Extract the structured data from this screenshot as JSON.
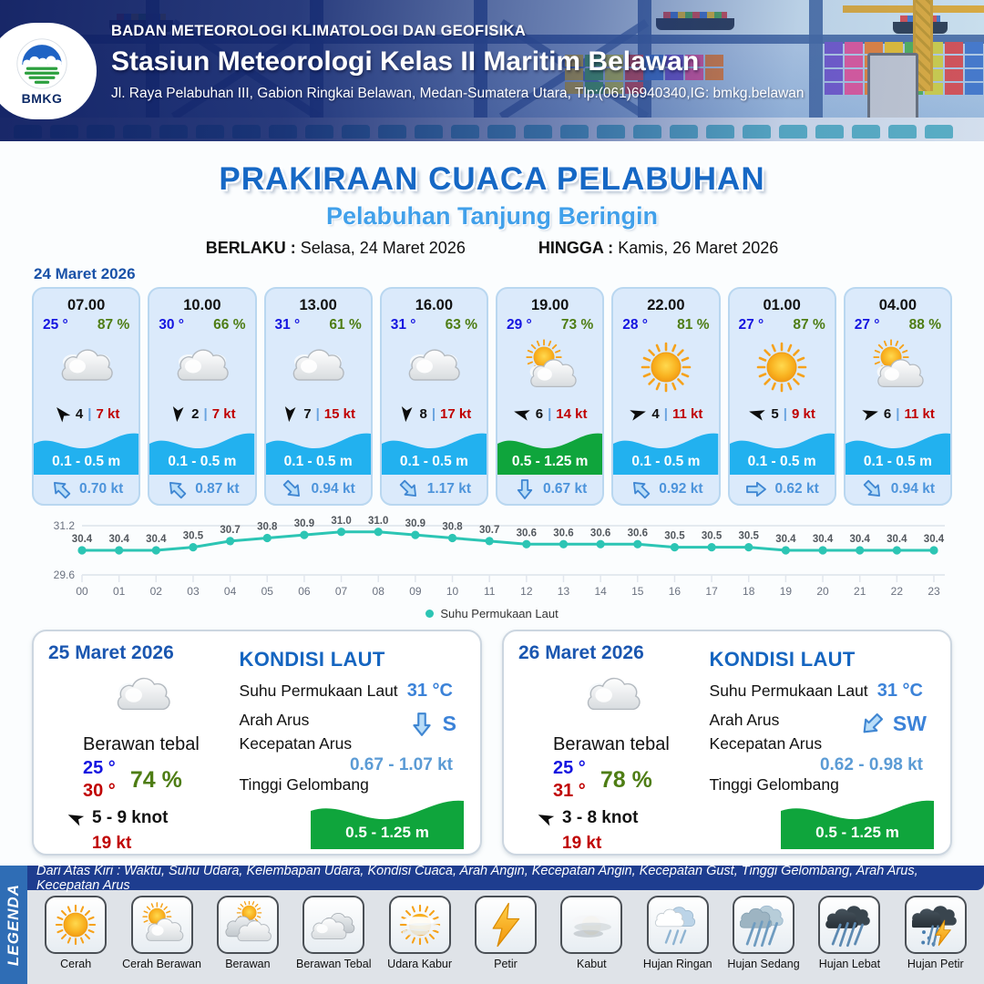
{
  "header": {
    "agency": "BADAN METEOROLOGI KLIMATOLOGI DAN GEOFISIKA",
    "station": "Stasiun Meteorologi Kelas II Maritim Belawan",
    "address": "Jl. Raya Pelabuhan III, Gabion Ringkai Belawan, Medan-Sumatera Utara, Tlp:(061)6940340,IG: bmkg.belawan",
    "logo": "BMKG"
  },
  "title": {
    "main": "PRAKIRAAN CUACA PELABUHAN",
    "sub": "Pelabuhan Tanjung Beringin"
  },
  "validity": {
    "berlaku_label": "BERLAKU :",
    "berlaku_value": "Selasa, 24 Maret 2026",
    "hingga_label": "HINGGA :",
    "hingga_value": "Kamis, 26 Maret 2026"
  },
  "day_label": "24 Maret 2026",
  "ui": {
    "gust_sep": "|"
  },
  "hourly": [
    {
      "time": "07.00",
      "temp": "25 °",
      "humidity": "87 %",
      "icon": "cloud",
      "wind_deg": 230,
      "wind": "4",
      "gust": "7 kt",
      "wave": "0.1 - 0.5 m",
      "wave_color": "#22b1ef",
      "current_deg": 225,
      "current": "0.70 kt"
    },
    {
      "time": "10.00",
      "temp": "30 °",
      "humidity": "66 %",
      "icon": "cloud",
      "wind_deg": 95,
      "wind": "2",
      "gust": "7 kt",
      "wave": "0.1 - 0.5 m",
      "wave_color": "#22b1ef",
      "current_deg": 225,
      "current": "0.87 kt"
    },
    {
      "time": "13.00",
      "temp": "31 °",
      "humidity": "61 %",
      "icon": "cloud",
      "wind_deg": 95,
      "wind": "7",
      "gust": "15 kt",
      "wave": "0.1 - 0.5 m",
      "wave_color": "#22b1ef",
      "current_deg": 45,
      "current": "0.94 kt"
    },
    {
      "time": "16.00",
      "temp": "31 °",
      "humidity": "63 %",
      "icon": "cloud",
      "wind_deg": 95,
      "wind": "8",
      "gust": "17 kt",
      "wave": "0.1 - 0.5 m",
      "wave_color": "#22b1ef",
      "current_deg": 45,
      "current": "1.17 kt"
    },
    {
      "time": "19.00",
      "temp": "29 °",
      "humidity": "73 %",
      "icon": "sun-cloud",
      "wind_deg": 195,
      "wind": "6",
      "gust": "14 kt",
      "wave": "0.5 - 1.25 m",
      "wave_color": "#0fa53c",
      "current_deg": 90,
      "current": "0.67 kt"
    },
    {
      "time": "22.00",
      "temp": "28 °",
      "humidity": "81 %",
      "icon": "sun",
      "wind_deg": 345,
      "wind": "4",
      "gust": "11 kt",
      "wave": "0.1 - 0.5 m",
      "wave_color": "#22b1ef",
      "current_deg": 225,
      "current": "0.92 kt"
    },
    {
      "time": "01.00",
      "temp": "27 °",
      "humidity": "87 %",
      "icon": "sun",
      "wind_deg": 195,
      "wind": "5",
      "gust": "9 kt",
      "wave": "0.1 - 0.5 m",
      "wave_color": "#22b1ef",
      "current_deg": 0,
      "current": "0.62 kt"
    },
    {
      "time": "04.00",
      "temp": "27 °",
      "humidity": "88 %",
      "icon": "sun-cloud",
      "wind_deg": 345,
      "wind": "6",
      "gust": "11 kt",
      "wave": "0.1 - 0.5 m",
      "wave_color": "#22b1ef",
      "current_deg": 45,
      "current": "0.94 kt"
    }
  ],
  "chart_data": {
    "type": "line",
    "x": [
      "00",
      "01",
      "02",
      "03",
      "04",
      "05",
      "06",
      "07",
      "08",
      "09",
      "10",
      "11",
      "12",
      "13",
      "14",
      "15",
      "16",
      "17",
      "18",
      "19",
      "20",
      "21",
      "22",
      "23"
    ],
    "series": [
      {
        "name": "Suhu Permukaan Laut",
        "values": [
          30.4,
          30.4,
          30.4,
          30.5,
          30.7,
          30.8,
          30.9,
          31.0,
          31.0,
          30.9,
          30.8,
          30.7,
          30.6,
          30.6,
          30.6,
          30.6,
          30.5,
          30.5,
          30.5,
          30.4,
          30.4,
          30.4,
          30.4,
          30.4
        ]
      }
    ],
    "ylim": [
      29.6,
      31.2
    ],
    "yticks": [
      "31.2",
      "29.6"
    ],
    "legend": "Suhu Permukaan Laut",
    "legend_position": "bottom",
    "line_color": "#2cc5b4",
    "grid": "top-and-bottom-only",
    "title": "",
    "xlabel": "",
    "ylabel": ""
  },
  "sea_labels": {
    "title": "KONDISI LAUT",
    "sst": "Suhu Permukaan Laut",
    "arah": "Arah Arus",
    "kecepatan": "Kecepatan Arus",
    "gelombang": "Tinggi Gelombang"
  },
  "daily": [
    {
      "date": "25 Maret 2026",
      "condition": "Berawan tebal",
      "icon": "cloud",
      "temp_min": "25 °",
      "temp_max": "30 °",
      "humidity": "74 %",
      "wind_deg": 205,
      "wind": "5 - 9 knot",
      "gust": "19 kt",
      "sst_value": "31 °C",
      "current_dir": "S",
      "current_dir_deg": 90,
      "current_speed": "0.67 - 1.07 kt",
      "wave_height": "0.5 - 1.25 m",
      "wave_color": "#0fa53c"
    },
    {
      "date": "26 Maret 2026",
      "condition": "Berawan tebal",
      "icon": "cloud",
      "temp_min": "25 °",
      "temp_max": "31 °",
      "humidity": "78 %",
      "wind_deg": 205,
      "wind": "3 - 8 knot",
      "gust": "19 kt",
      "sst_value": "31 °C",
      "current_dir": "SW",
      "current_dir_deg": 135,
      "current_speed": "0.62 - 0.98 kt",
      "wave_height": "0.5 - 1.25 m",
      "wave_color": "#0fa53c"
    }
  ],
  "legend": {
    "strip": "LEGENDA",
    "note": "Dari Atas Kiri : Waktu, Suhu Udara, Kelembapan Udara, Kondisi Cuaca, Arah Angin, Kecepatan Angin, Kecepatan Gust, Tinggi Gelombang, Arah Arus, Kecepatan Arus",
    "items": [
      {
        "label": "Cerah",
        "icon": "sun"
      },
      {
        "label": "Cerah Berawan",
        "icon": "sun-cloud"
      },
      {
        "label": "Berawan",
        "icon": "cloud-sun"
      },
      {
        "label": "Berawan Tebal",
        "icon": "clouds"
      },
      {
        "label": "Udara Kabur",
        "icon": "haze"
      },
      {
        "label": "Petir",
        "icon": "bolt"
      },
      {
        "label": "Kabut",
        "icon": "fog"
      },
      {
        "label": "Hujan Ringan",
        "icon": "rain-light"
      },
      {
        "label": "Hujan Sedang",
        "icon": "rain-mid"
      },
      {
        "label": "Hujan Lebat",
        "icon": "rain-heavy"
      },
      {
        "label": "Hujan Petir",
        "icon": "rain-bolt"
      }
    ]
  },
  "colors": {
    "title_blue": "#1668c5",
    "subtitle_blue": "#41a0ea",
    "temp_blue": "#1515e0",
    "humidity_green": "#4e7d14",
    "gust_red": "#c00000",
    "wave_blue": "#22b1ef",
    "wave_green": "#0fa53c",
    "current_blue": "#4d94db",
    "chart_teal": "#2cc5b4",
    "note_navy": "#1e3d8f",
    "legend_strip_blue": "#2f6db5"
  }
}
